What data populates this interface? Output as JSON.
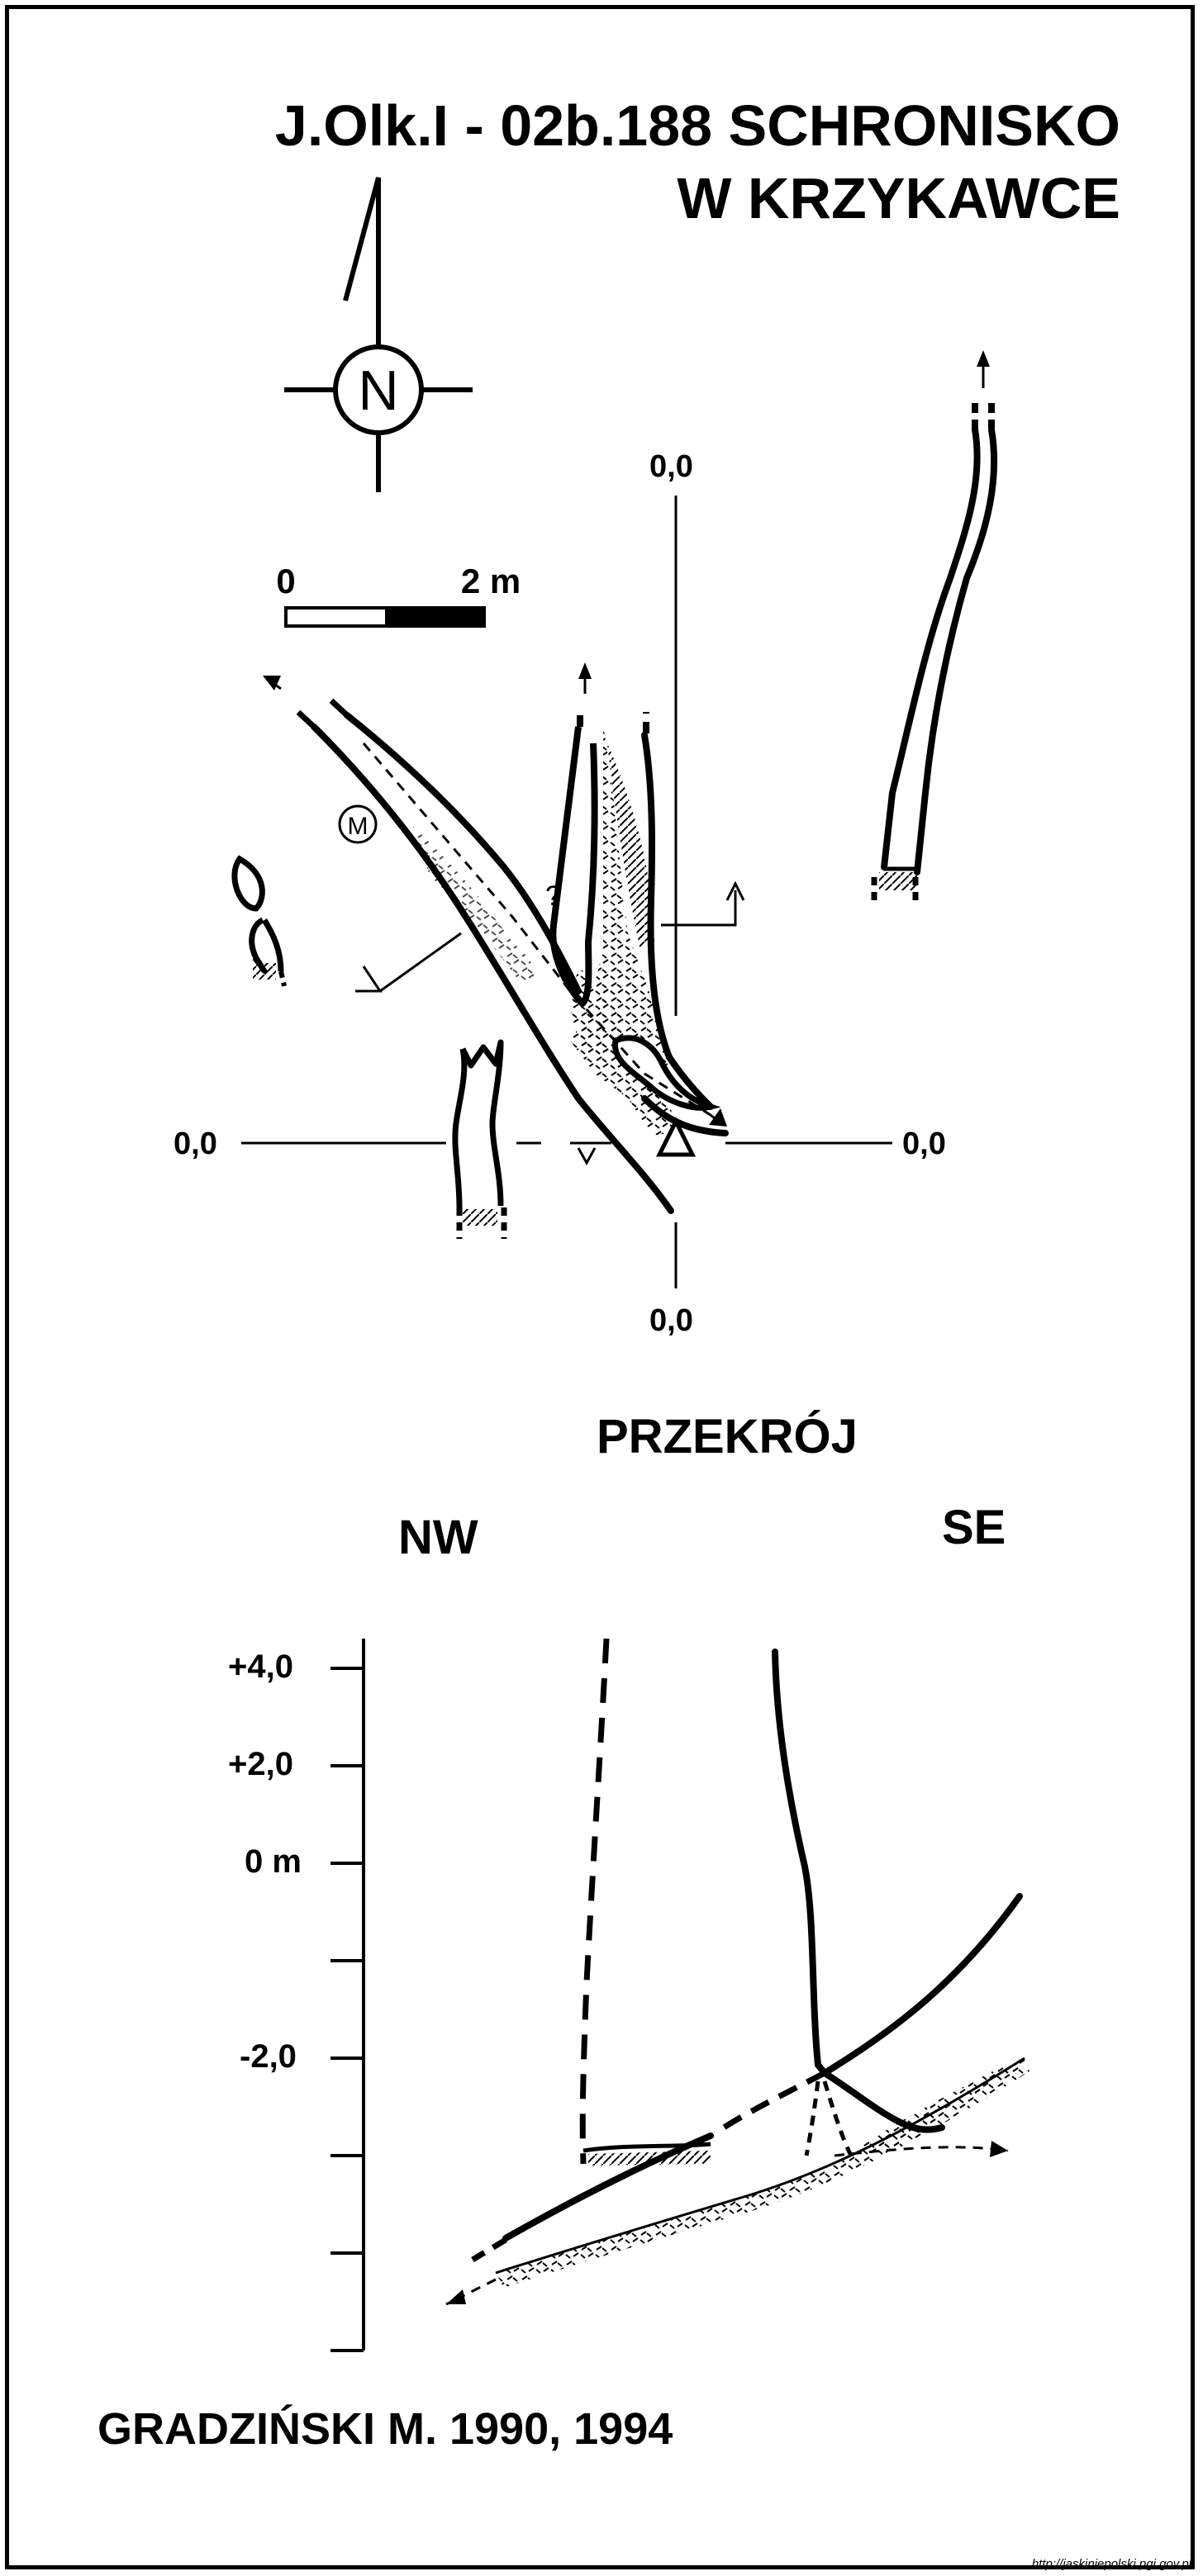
{
  "title": {
    "line1": "J.Olk.I - 02b.188  SCHRONISKO",
    "line2": "W KRZYKAWCE"
  },
  "compass": {
    "letter": "N",
    "icon": "north-arrow-icon"
  },
  "scale_bar": {
    "start_label": "0",
    "end_label": "2 m"
  },
  "plan": {
    "datum_labels": {
      "top": "0,0",
      "left": "0,0",
      "right": "0,0",
      "bottom": "0,0"
    },
    "marker_letter": "M",
    "question_mark": "?"
  },
  "section": {
    "heading": "PRZEKRÓJ",
    "left_dir": "NW",
    "right_dir": "SE",
    "elevation_ticks": [
      "+4,0",
      "+2,0",
      "0 m",
      "-2,0"
    ]
  },
  "footer": {
    "author": "GRADZIŃSKI M. 1990, 1994"
  },
  "source_url": "http://jaskiniepolski.pgi.gov.pl",
  "colors": {
    "ink": "#000000",
    "paper": "#ffffff"
  }
}
